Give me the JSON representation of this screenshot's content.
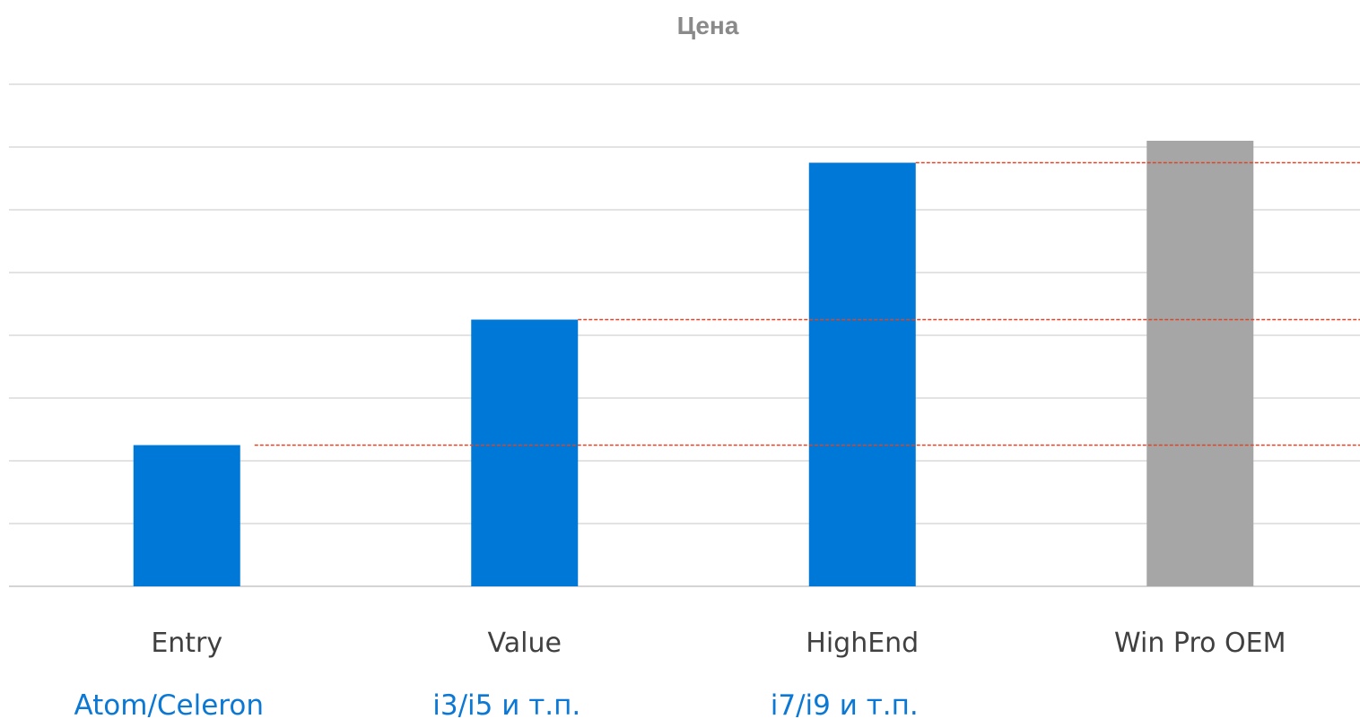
{
  "chart_data": {
    "type": "bar",
    "title": "Цена",
    "categories": [
      "Entry",
      "Value",
      "HighEnd",
      "Win Pro OEM"
    ],
    "sublabels": [
      "Atom/Celeron",
      "i3/i5 и т.п.",
      "i7/i9 и т.п.",
      ""
    ],
    "values": [
      2.25,
      4.25,
      6.75,
      7.1
    ],
    "bar_colors": [
      "#0078d7",
      "#0078d7",
      "#0078d7",
      "#a6a6a6"
    ],
    "sublabel_color": "#0a78d4",
    "reference_line_color": "#d9472b",
    "reference_lines_at_categories": [
      0,
      1,
      2
    ],
    "ylim": [
      0,
      8
    ],
    "gridline_step": 1,
    "grid": true,
    "axis_labels_shown": false,
    "xlabel": "",
    "ylabel": "",
    "legend": "none"
  }
}
